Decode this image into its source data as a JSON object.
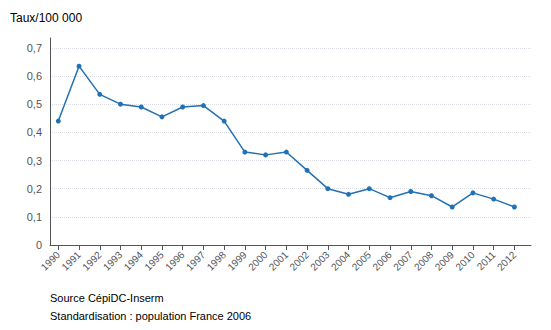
{
  "chart_data": {
    "type": "line",
    "ylabel": "Taux/100 000",
    "annotations": [
      "Source CépiDC-Inserm",
      "Standardisation : population France 2006"
    ],
    "x": [
      1990,
      1991,
      1992,
      1993,
      1994,
      1995,
      1996,
      1997,
      1998,
      1999,
      2000,
      2001,
      2002,
      2003,
      2004,
      2005,
      2006,
      2007,
      2008,
      2009,
      2010,
      2011,
      2012
    ],
    "values": [
      0.44,
      0.635,
      0.535,
      0.5,
      0.49,
      0.455,
      0.49,
      0.495,
      0.44,
      0.33,
      0.32,
      0.33,
      0.265,
      0.2,
      0.18,
      0.2,
      0.168,
      0.19,
      0.175,
      0.135,
      0.185,
      0.163,
      0.135
    ],
    "color": "#2171b5",
    "marker": "circle",
    "xlim": [
      1989.6,
      2012.8
    ],
    "xticks": [
      1990,
      1991,
      1992,
      1993,
      1994,
      1995,
      1996,
      1997,
      1998,
      1999,
      2000,
      2001,
      2002,
      2003,
      2004,
      2005,
      2006,
      2007,
      2008,
      2009,
      2010,
      2011,
      2012
    ],
    "ylim": [
      0,
      0.735
    ],
    "yticks": [
      0,
      {
        "value": 0.1,
        "label": "0,1"
      },
      {
        "value": 0.2,
        "label": "0,2"
      },
      {
        "value": 0.3,
        "label": "0,3"
      },
      {
        "value": 0.4,
        "label": "0,4"
      },
      {
        "value": 0.5,
        "label": "0,5"
      },
      {
        "value": 0.6,
        "label": "0,6"
      },
      {
        "value": 0.7,
        "label": "0,7"
      }
    ],
    "grid": true
  }
}
